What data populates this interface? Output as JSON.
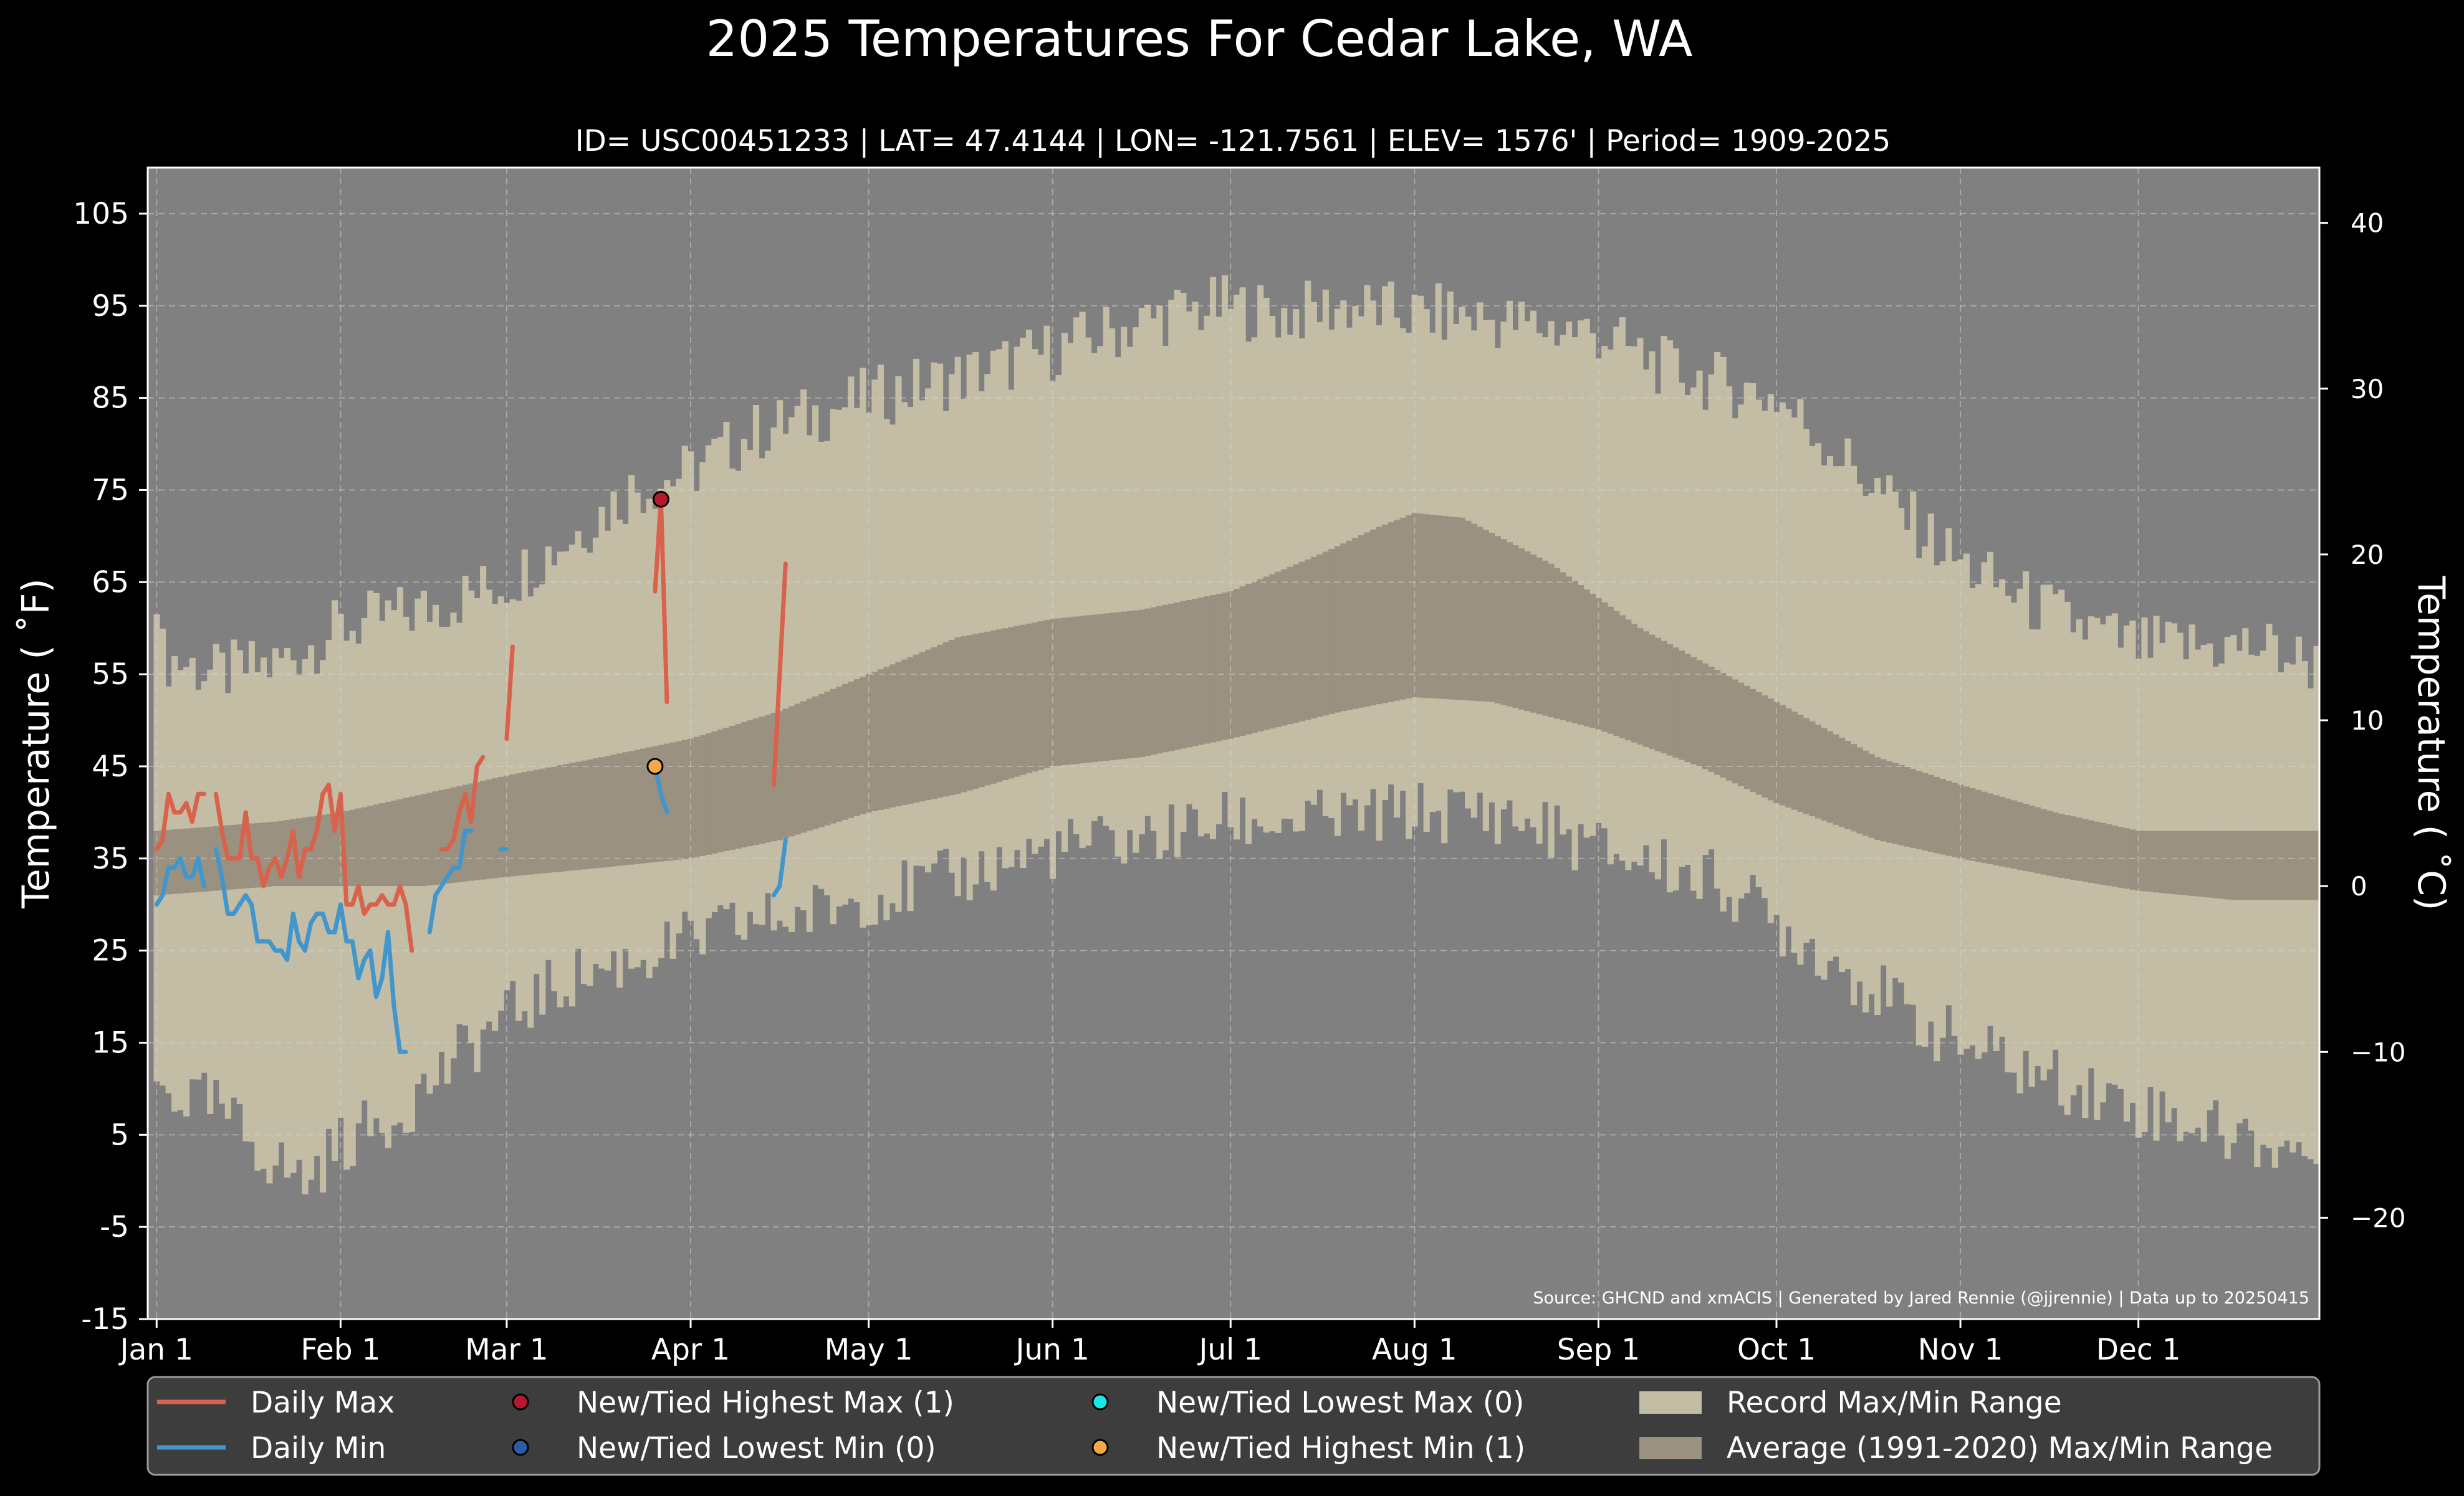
{
  "chart_data": {
    "type": "line",
    "title": "2025 Temperatures For Cedar Lake, WA",
    "subtitle": "ID= USC00451233 | LAT= 47.4144 | LON= -121.7561 | ELEV= 1576' | Period= 1909-2025",
    "ylabel": "Temperature ( ˚F)",
    "y2label": "Temperature ( ˚C)",
    "ylim": [
      -15,
      110
    ],
    "y2lim": [
      -26.11,
      43.33
    ],
    "xlim": [
      -1.5,
      364.5
    ],
    "yticks": [
      "105",
      "95",
      "85",
      "75",
      "65",
      "55",
      "45",
      "35",
      "25",
      "15",
      "5",
      "-5",
      "-15"
    ],
    "y2ticks": [
      "40",
      "30",
      "20",
      "10",
      "0",
      "−10",
      "−20"
    ],
    "xticks": [
      {
        "label": "Jan 1",
        "day": 0
      },
      {
        "label": "Feb 1",
        "day": 31
      },
      {
        "label": "Mar 1",
        "day": 59
      },
      {
        "label": "Apr 1",
        "day": 90
      },
      {
        "label": "May 1",
        "day": 120
      },
      {
        "label": "Jun 1",
        "day": 151
      },
      {
        "label": "Jul 1",
        "day": 181
      },
      {
        "label": "Aug 1",
        "day": 212
      },
      {
        "label": "Sep 1",
        "day": 243
      },
      {
        "label": "Oct 1",
        "day": 273
      },
      {
        "label": "Nov 1",
        "day": 304
      },
      {
        "label": "Dec 1",
        "day": 334
      }
    ],
    "grid": true,
    "legend_position": "bottom",
    "source_note": "Source: GHCND and xmACIS | Generated by Jared Rennie (@jjrennie) | Data up to 20250415",
    "series": [
      {
        "name": "Daily Max",
        "color": "#d9624c",
        "x_start": 0,
        "values": [
          36,
          37,
          42,
          40,
          40,
          41,
          39,
          42,
          42,
          null,
          42,
          38,
          35,
          35,
          35,
          40,
          35,
          35,
          32,
          34,
          35,
          33,
          35,
          38,
          33,
          36,
          36,
          38,
          42,
          43,
          38,
          42,
          30,
          30,
          32,
          29,
          30,
          30,
          31,
          30,
          30,
          32,
          30,
          25,
          null,
          null,
          null,
          null,
          36,
          36,
          37,
          40,
          42,
          39,
          45,
          46,
          null,
          null,
          null,
          48,
          58,
          null,
          null,
          null,
          null,
          null,
          null,
          null,
          null,
          null,
          null,
          null,
          null,
          null,
          null,
          null,
          null,
          null,
          null,
          null,
          null,
          null,
          null,
          null,
          64,
          74,
          52,
          null,
          null,
          null,
          null,
          null,
          null,
          null,
          null,
          null,
          null,
          null,
          null,
          null,
          null,
          null,
          null,
          null,
          43,
          55,
          67
        ]
      },
      {
        "name": "Daily Min",
        "color": "#4396cc",
        "x_start": 0,
        "values": [
          30,
          31,
          34,
          34,
          35,
          33,
          33,
          35,
          32,
          null,
          36,
          33,
          29,
          29,
          30,
          31,
          30,
          26,
          26,
          26,
          25,
          25,
          24,
          29,
          26,
          25,
          28,
          29,
          29,
          27,
          27,
          30,
          26,
          26,
          22,
          24,
          25,
          20,
          22,
          27,
          19,
          14,
          14,
          null,
          null,
          null,
          27,
          31,
          32,
          33,
          34,
          34,
          38,
          38,
          null,
          null,
          null,
          null,
          36,
          36,
          null,
          null,
          null,
          null,
          null,
          null,
          null,
          null,
          null,
          null,
          null,
          null,
          null,
          null,
          null,
          null,
          null,
          null,
          null,
          null,
          null,
          null,
          null,
          null,
          45,
          42,
          40,
          null,
          null,
          null,
          null,
          null,
          null,
          null,
          null,
          null,
          null,
          null,
          null,
          null,
          null,
          null,
          null,
          null,
          31,
          32,
          37
        ]
      },
      {
        "name": "New/Tied Highest Max (1)",
        "color": "#b5192b",
        "points": [
          [
            85,
            74
          ]
        ]
      },
      {
        "name": "New/Tied Lowest Min (0)",
        "color": "#2a5ca8",
        "points": []
      },
      {
        "name": "New/Tied Lowest Max (0)",
        "color": "#19e6e6",
        "points": []
      },
      {
        "name": "New/Tied Highest Min (1)",
        "color": "#f5a74a",
        "points": [
          [
            84,
            45
          ]
        ]
      },
      {
        "name": "Record Max/Min Range",
        "color": "#c4bda5",
        "max_anchors": [
          [
            0,
            65
          ],
          [
            1,
            57
          ],
          [
            10,
            55
          ],
          [
            20,
            56
          ],
          [
            31,
            60
          ],
          [
            45,
            62
          ],
          [
            59,
            65
          ],
          [
            70,
            70
          ],
          [
            80,
            75
          ],
          [
            90,
            77
          ],
          [
            100,
            81
          ],
          [
            110,
            83
          ],
          [
            120,
            85
          ],
          [
            140,
            88
          ],
          [
            150,
            90
          ],
          [
            160,
            92
          ],
          [
            170,
            94
          ],
          [
            180,
            95
          ],
          [
            190,
            94
          ],
          [
            200,
            95
          ],
          [
            212,
            94
          ],
          [
            220,
            94
          ],
          [
            230,
            93
          ],
          [
            243,
            92
          ],
          [
            255,
            88
          ],
          [
            273,
            85
          ],
          [
            285,
            78
          ],
          [
            295,
            72
          ],
          [
            304,
            67
          ],
          [
            315,
            63
          ],
          [
            325,
            60
          ],
          [
            334,
            58
          ],
          [
            345,
            58
          ],
          [
            355,
            58
          ],
          [
            364,
            56
          ]
        ],
        "min_anchors": [
          [
            0,
            10
          ],
          [
            10,
            8
          ],
          [
            20,
            2
          ],
          [
            25,
            0
          ],
          [
            31,
            4
          ],
          [
            40,
            7
          ],
          [
            50,
            13
          ],
          [
            59,
            18
          ],
          [
            70,
            22
          ],
          [
            80,
            24
          ],
          [
            90,
            26
          ],
          [
            100,
            28
          ],
          [
            110,
            29
          ],
          [
            120,
            31
          ],
          [
            130,
            32
          ],
          [
            140,
            34
          ],
          [
            151,
            36
          ],
          [
            165,
            37
          ],
          [
            181,
            39
          ],
          [
            195,
            39
          ],
          [
            212,
            40
          ],
          [
            225,
            40
          ],
          [
            235,
            38
          ],
          [
            243,
            36
          ],
          [
            255,
            34
          ],
          [
            265,
            32
          ],
          [
            273,
            28
          ],
          [
            285,
            23
          ],
          [
            295,
            18
          ],
          [
            304,
            15
          ],
          [
            315,
            12
          ],
          [
            325,
            10
          ],
          [
            334,
            8
          ],
          [
            345,
            6
          ],
          [
            355,
            4
          ],
          [
            364,
            3
          ]
        ]
      },
      {
        "name": "Average (1991-2020) Max/Min Range",
        "color": "#9a9180",
        "max_anchors": [
          [
            0,
            38
          ],
          [
            20,
            39
          ],
          [
            31,
            40
          ],
          [
            45,
            42
          ],
          [
            59,
            44
          ],
          [
            75,
            46
          ],
          [
            90,
            48
          ],
          [
            105,
            51
          ],
          [
            120,
            55
          ],
          [
            135,
            59
          ],
          [
            151,
            61
          ],
          [
            166,
            62
          ],
          [
            181,
            64
          ],
          [
            196,
            68
          ],
          [
            206,
            71
          ],
          [
            212,
            72.5
          ],
          [
            220,
            72
          ],
          [
            235,
            67
          ],
          [
            250,
            60
          ],
          [
            273,
            52
          ],
          [
            290,
            46
          ],
          [
            304,
            43
          ],
          [
            320,
            40
          ],
          [
            334,
            38
          ],
          [
            350,
            38
          ],
          [
            364,
            38
          ]
        ],
        "min_anchors": [
          [
            0,
            31
          ],
          [
            20,
            32
          ],
          [
            31,
            32
          ],
          [
            45,
            32
          ],
          [
            59,
            33
          ],
          [
            75,
            34
          ],
          [
            90,
            35
          ],
          [
            105,
            37
          ],
          [
            120,
            40
          ],
          [
            135,
            42
          ],
          [
            151,
            45
          ],
          [
            166,
            46
          ],
          [
            181,
            48
          ],
          [
            200,
            51
          ],
          [
            212,
            52.5
          ],
          [
            225,
            52
          ],
          [
            243,
            49
          ],
          [
            260,
            45
          ],
          [
            273,
            41
          ],
          [
            290,
            37
          ],
          [
            304,
            35
          ],
          [
            320,
            33
          ],
          [
            334,
            31.5
          ],
          [
            350,
            30.5
          ],
          [
            364,
            30.5
          ]
        ]
      }
    ]
  }
}
